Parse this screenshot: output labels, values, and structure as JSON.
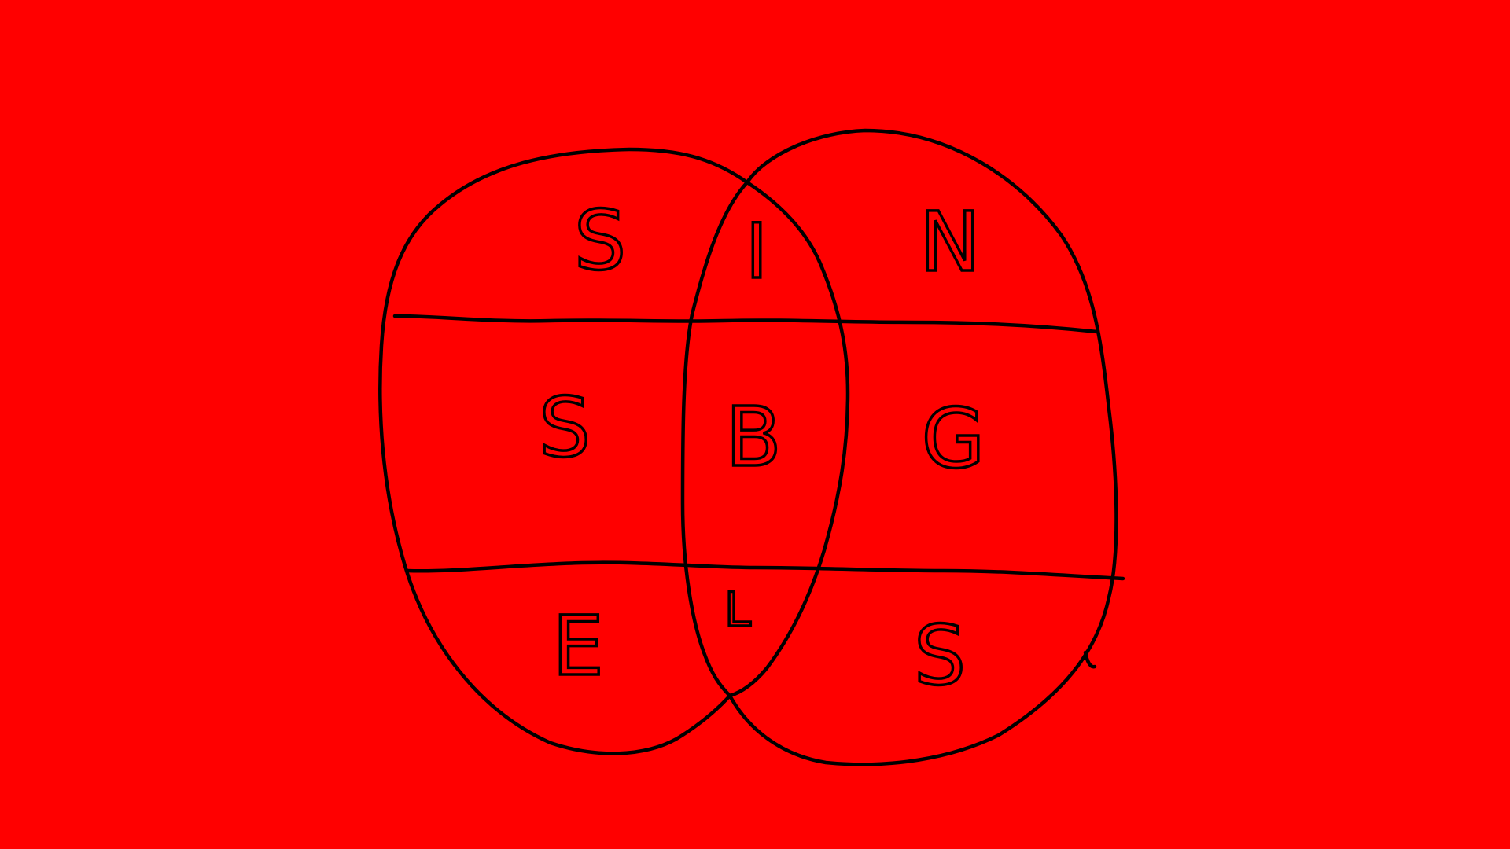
{
  "background_color": "#ff0000",
  "stroke_color": "#000000",
  "diagram": {
    "rows": [
      {
        "left": "S",
        "middle": "I",
        "right": "N"
      },
      {
        "left": "S",
        "middle": "B",
        "right": "G"
      },
      {
        "left": "E",
        "middle": "L",
        "right": "S"
      }
    ]
  }
}
